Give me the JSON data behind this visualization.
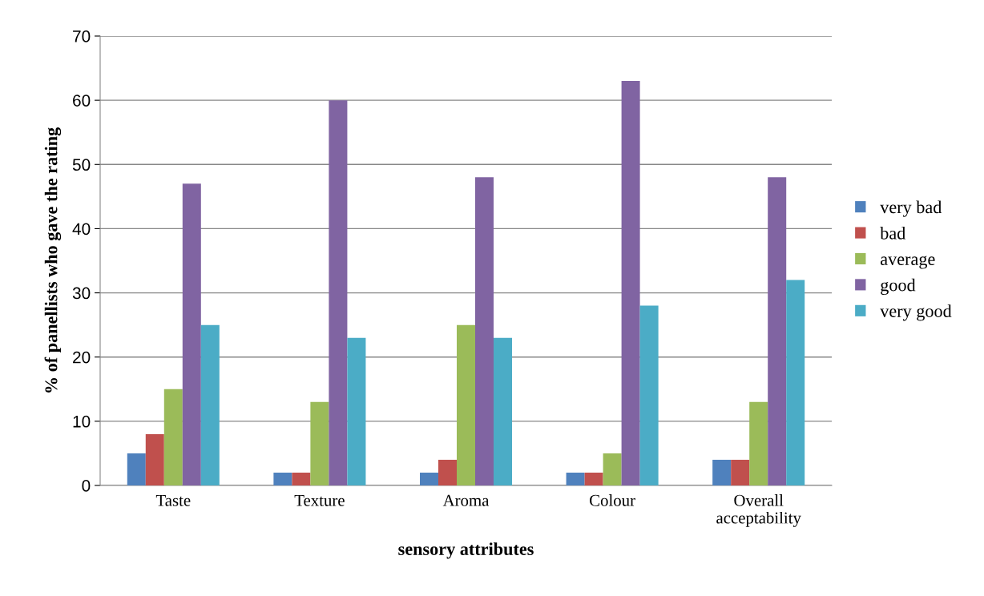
{
  "chart_data": {
    "type": "bar",
    "xlabel": "sensory attributes",
    "ylabel": "% of panellists who gave the rating",
    "categories": [
      "Taste",
      "Texture",
      "Aroma",
      "Colour",
      "Overall acceptability"
    ],
    "series": [
      {
        "name": "very bad",
        "color": "#4f81bd",
        "values": [
          5,
          2,
          2,
          2,
          4
        ]
      },
      {
        "name": "bad",
        "color": "#c0504d",
        "values": [
          8,
          2,
          4,
          2,
          4
        ]
      },
      {
        "name": "average",
        "color": "#9bbb59",
        "values": [
          15,
          13,
          25,
          5,
          13
        ]
      },
      {
        "name": "good",
        "color": "#8064a2",
        "values": [
          47,
          60,
          48,
          63,
          48
        ]
      },
      {
        "name": "very good",
        "color": "#4bacc6",
        "values": [
          25,
          23,
          23,
          28,
          32
        ]
      }
    ],
    "ylim": [
      0,
      70
    ],
    "yticks": [
      0,
      10,
      20,
      30,
      40,
      50,
      60,
      70
    ],
    "grid": "y",
    "legend": "right"
  }
}
